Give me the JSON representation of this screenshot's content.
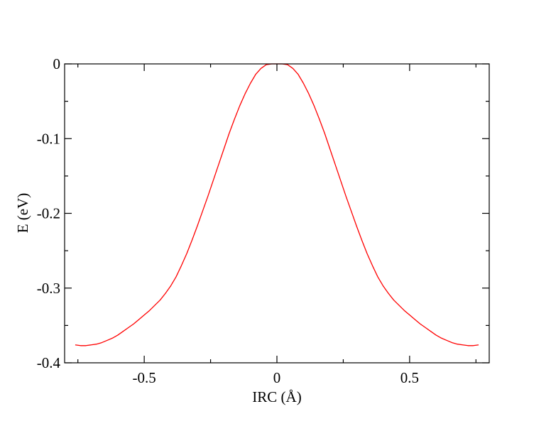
{
  "chart_data": {
    "type": "line",
    "title": "",
    "xlabel": "IRC (Å)",
    "ylabel": "E (eV)",
    "xlim": [
      -0.8,
      0.8
    ],
    "ylim": [
      -0.4,
      0
    ],
    "x_ticks": [
      -0.5,
      0,
      0.5
    ],
    "x_tick_labels": [
      "-0.5",
      "0",
      "0.5"
    ],
    "x_minor_ticks": [
      -0.75,
      -0.25,
      0.25,
      0.75
    ],
    "y_ticks": [
      -0.4,
      -0.3,
      -0.2,
      -0.1,
      0
    ],
    "y_tick_labels": [
      "-0.4",
      "-0.3",
      "-0.2",
      "-0.1",
      "0"
    ],
    "y_minor_ticks": [
      -0.35,
      -0.25,
      -0.15,
      -0.05
    ],
    "grid": false,
    "legend": "none",
    "series": [
      {
        "color": "#ff0000",
        "x": [
          -0.76,
          -0.74,
          -0.72,
          -0.7,
          -0.68,
          -0.66,
          -0.64,
          -0.62,
          -0.6,
          -0.58,
          -0.56,
          -0.54,
          -0.52,
          -0.5,
          -0.48,
          -0.46,
          -0.44,
          -0.42,
          -0.4,
          -0.38,
          -0.36,
          -0.34,
          -0.32,
          -0.3,
          -0.28,
          -0.26,
          -0.24,
          -0.22,
          -0.2,
          -0.18,
          -0.16,
          -0.14,
          -0.12,
          -0.1,
          -0.08,
          -0.06,
          -0.04,
          -0.02,
          0.0,
          0.02,
          0.04,
          0.06,
          0.08,
          0.1,
          0.12,
          0.14,
          0.16,
          0.18,
          0.2,
          0.22,
          0.24,
          0.26,
          0.28,
          0.3,
          0.32,
          0.34,
          0.36,
          0.38,
          0.4,
          0.42,
          0.44,
          0.46,
          0.48,
          0.5,
          0.52,
          0.54,
          0.56,
          0.58,
          0.6,
          0.62,
          0.64,
          0.66,
          0.68,
          0.7,
          0.72,
          0.74,
          0.76
        ],
        "y": [
          -0.376,
          -0.377,
          -0.377,
          -0.376,
          -0.375,
          -0.373,
          -0.37,
          -0.367,
          -0.363,
          -0.358,
          -0.353,
          -0.348,
          -0.342,
          -0.336,
          -0.33,
          -0.323,
          -0.316,
          -0.307,
          -0.297,
          -0.285,
          -0.27,
          -0.254,
          -0.236,
          -0.217,
          -0.197,
          -0.177,
          -0.156,
          -0.135,
          -0.114,
          -0.093,
          -0.074,
          -0.056,
          -0.04,
          -0.026,
          -0.014,
          -0.006,
          -0.001,
          0.0,
          0.0,
          0.0,
          -0.001,
          -0.006,
          -0.014,
          -0.026,
          -0.04,
          -0.056,
          -0.074,
          -0.093,
          -0.114,
          -0.135,
          -0.156,
          -0.177,
          -0.197,
          -0.217,
          -0.236,
          -0.254,
          -0.27,
          -0.285,
          -0.297,
          -0.307,
          -0.316,
          -0.323,
          -0.33,
          -0.336,
          -0.342,
          -0.348,
          -0.353,
          -0.358,
          -0.363,
          -0.367,
          -0.37,
          -0.373,
          -0.375,
          -0.376,
          -0.377,
          -0.377,
          -0.376
        ]
      }
    ]
  }
}
